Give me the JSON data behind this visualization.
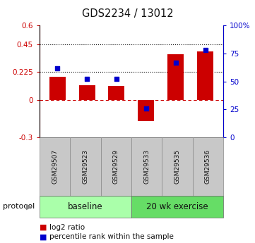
{
  "title": "GDS2234 / 13012",
  "samples": [
    "GSM29507",
    "GSM29523",
    "GSM29529",
    "GSM29533",
    "GSM29535",
    "GSM29536"
  ],
  "log2_ratio": [
    0.19,
    0.12,
    0.115,
    -0.17,
    0.37,
    0.39
  ],
  "percentile_rank": [
    62,
    52,
    52,
    26,
    67,
    78
  ],
  "bar_color": "#cc0000",
  "dot_color": "#0000cc",
  "ylim_left": [
    -0.3,
    0.6
  ],
  "ylim_right": [
    0,
    100
  ],
  "yticks_left": [
    -0.3,
    0.0,
    0.225,
    0.45,
    0.6
  ],
  "yticks_right": [
    0,
    25,
    50,
    75,
    100
  ],
  "ytick_labels_left": [
    "-0.3",
    "0",
    "0.225",
    "0.45",
    "0.6"
  ],
  "ytick_labels_right": [
    "0",
    "25",
    "50",
    "75",
    "100%"
  ],
  "hlines": [
    0.225,
    0.45
  ],
  "zero_line_color": "#cc0000",
  "hline_color": "#000000",
  "groups": [
    {
      "label": "baseline",
      "n": 3,
      "color": "#aaffaa"
    },
    {
      "label": "20 wk exercise",
      "n": 3,
      "color": "#66dd66"
    }
  ],
  "protocol_label": "protocol",
  "legend_bar_label": "log2 ratio",
  "legend_dot_label": "percentile rank within the sample",
  "left_axis_color": "#cc0000",
  "right_axis_color": "#0000cc"
}
